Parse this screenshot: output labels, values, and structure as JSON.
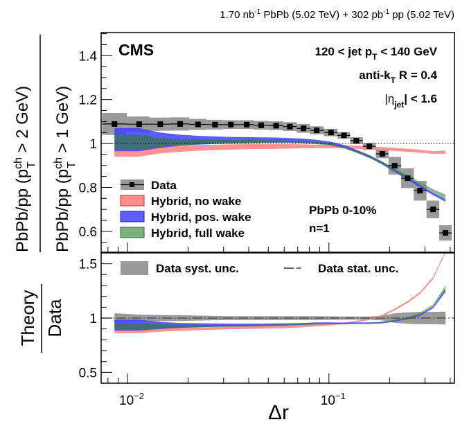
{
  "chart_data": [
    {
      "type": "line",
      "panel": "top",
      "header": {
        "lumi_pbpb": "1.70 nb",
        "lumi_pbpb_sup": "-1",
        "lumi_pbpb_rest": " PbPb (5.02 TeV) + 302 pb",
        "lumi_pp_sup": "-1",
        "lumi_pp_rest": " pp (5.02 TeV)"
      },
      "experiment_label": "CMS",
      "annotations": {
        "jet_pt_a": "120 < jet p",
        "jet_pt_sub": "T",
        "jet_pt_b": " < 140 GeV",
        "algo_a": "anti-k",
        "algo_sub": "T",
        "algo_b": " R = 0.4",
        "eta_a": "|η",
        "eta_sub": "jet",
        "eta_b": "| < 1.6",
        "centrality": "PbPb 0-10%",
        "n": "n=1"
      },
      "ylabel": {
        "num_a": "PbPb/pp (p",
        "num_sup": "ch",
        "num_sub": "T",
        "num_b": " > 2 GeV)",
        "den_a": "PbPb/pp (p",
        "den_sup": "ch",
        "den_sub": "T",
        "den_b": " > 1 GeV)"
      },
      "xscale": "log",
      "xlim": [
        0.0074,
        0.42
      ],
      "ylim": [
        0.505,
        1.505
      ],
      "yticks": [
        0.6,
        0.8,
        1.0,
        1.2,
        1.4
      ],
      "ytick_labels": [
        "0.6",
        "0.8",
        "1",
        "1.2",
        "1.4"
      ],
      "reference_line": 1.0,
      "legend": {
        "placement": "bottom-left",
        "entries": [
          {
            "label": "Data",
            "kind": "data"
          },
          {
            "label": "Hybrid, no wake",
            "color": "#ff7f7f"
          },
          {
            "label": "Hybrid, pos. wake",
            "color": "#3b3bff"
          },
          {
            "label": "Hybrid, full wake",
            "color": "#4f9a4f"
          }
        ]
      },
      "x": [
        0.00862,
        0.01143,
        0.01455,
        0.01826,
        0.0224,
        0.0272,
        0.0326,
        0.0391,
        0.0461,
        0.0547,
        0.064,
        0.0748,
        0.0869,
        0.1024,
        0.1188,
        0.1368,
        0.1588,
        0.184,
        0.212,
        0.246,
        0.283,
        0.329,
        0.379
      ],
      "series": [
        {
          "name": "Data",
          "values": [
            1.089,
            1.088,
            1.088,
            1.089,
            1.087,
            1.086,
            1.086,
            1.086,
            1.083,
            1.081,
            1.077,
            1.069,
            1.06,
            1.05,
            1.037,
            1.013,
            0.987,
            0.953,
            0.899,
            0.842,
            0.785,
            0.7,
            0.593
          ],
          "syst": [
            0.05,
            0.035,
            0.03,
            0.03,
            0.025,
            0.022,
            0.02,
            0.02,
            0.02,
            0.02,
            0.02,
            0.02,
            0.018,
            0.017,
            0.015,
            0.015,
            0.015,
            0.02,
            0.04,
            0.045,
            0.045,
            0.04,
            0.035
          ]
        },
        {
          "name": "Hybrid, no wake",
          "color": "#ff8080",
          "lo": [
            0.94,
            0.94,
            0.955,
            0.962,
            0.967,
            0.97,
            0.972,
            0.974,
            0.975,
            0.976,
            0.977,
            0.978,
            0.979,
            0.979,
            0.978,
            0.976,
            0.973,
            0.97,
            0.966,
            0.962,
            0.958,
            0.953,
            0.952
          ],
          "hi": [
            0.975,
            0.975,
            0.985,
            0.99,
            0.993,
            0.995,
            0.996,
            0.997,
            0.997,
            0.997,
            0.997,
            0.996,
            0.995,
            0.994,
            0.993,
            0.99,
            0.987,
            0.984,
            0.98,
            0.976,
            0.972,
            0.965,
            0.968
          ]
        },
        {
          "name": "Hybrid, pos. wake",
          "color": "#4040ff",
          "lo": [
            0.965,
            0.965,
            0.98,
            0.99,
            0.995,
            0.998,
            1.0,
            1.002,
            1.003,
            1.004,
            1.004,
            1.003,
            1.0,
            0.993,
            0.98,
            0.96,
            0.935,
            0.905,
            0.87,
            0.835,
            0.8,
            0.765,
            0.735
          ],
          "hi": [
            1.07,
            1.07,
            1.05,
            1.04,
            1.035,
            1.032,
            1.03,
            1.029,
            1.028,
            1.027,
            1.025,
            1.022,
            1.017,
            1.008,
            0.993,
            0.972,
            0.947,
            0.917,
            0.883,
            0.848,
            0.812,
            0.775,
            0.745
          ]
        },
        {
          "name": "Hybrid, full wake",
          "color": "#5ba05b",
          "lo": [
            0.97,
            0.97,
            0.985,
            0.992,
            0.996,
            0.999,
            1.001,
            1.002,
            1.003,
            1.003,
            1.003,
            1.001,
            0.997,
            0.99,
            0.977,
            0.958,
            0.935,
            0.907,
            0.875,
            0.843,
            0.81,
            0.778,
            0.752
          ],
          "hi": [
            1.04,
            1.04,
            1.025,
            1.02,
            1.018,
            1.017,
            1.016,
            1.015,
            1.015,
            1.014,
            1.013,
            1.011,
            1.007,
            1.0,
            0.987,
            0.968,
            0.945,
            0.918,
            0.888,
            0.857,
            0.825,
            0.792,
            0.768
          ]
        }
      ]
    },
    {
      "type": "line",
      "panel": "bottom",
      "ylabel": {
        "num": "Theory",
        "den": "Data"
      },
      "xlabel": "Δr",
      "xscale": "log",
      "xlim": [
        0.0074,
        0.42
      ],
      "xtick_labels": [
        {
          "base": "10",
          "exp": "−2",
          "value": 0.01
        },
        {
          "base": "10",
          "exp": "−1",
          "value": 0.1
        }
      ],
      "ylim": [
        0.4,
        1.6
      ],
      "yticks": [
        0.5,
        1.0,
        1.5
      ],
      "ytick_labels": [
        "0.5",
        "1",
        "1.5"
      ],
      "reference_line": 1.0,
      "legend": {
        "placement": "top",
        "entries": [
          {
            "label": "Data syst. unc.",
            "kind": "band"
          },
          {
            "label": "Data stat. unc.",
            "kind": "dashed"
          }
        ]
      },
      "x": [
        0.00862,
        0.01143,
        0.01455,
        0.01826,
        0.0224,
        0.0272,
        0.0326,
        0.0391,
        0.0461,
        0.0547,
        0.064,
        0.0748,
        0.0869,
        0.1024,
        0.1188,
        0.1368,
        0.1588,
        0.184,
        0.212,
        0.246,
        0.283,
        0.329,
        0.379
      ],
      "series": [
        {
          "name": "Data syst. unc.",
          "rel": [
            0.045,
            0.032,
            0.028,
            0.027,
            0.023,
            0.02,
            0.018,
            0.018,
            0.018,
            0.018,
            0.018,
            0.018,
            0.017,
            0.016,
            0.015,
            0.015,
            0.015,
            0.022,
            0.044,
            0.053,
            0.057,
            0.057,
            0.059
          ]
        },
        {
          "name": "Hybrid, no wake",
          "color": "#ff8080",
          "lo": [
            0.86,
            0.86,
            0.875,
            0.882,
            0.888,
            0.893,
            0.897,
            0.9,
            0.902,
            0.905,
            0.908,
            0.915,
            0.924,
            0.933,
            0.945,
            0.962,
            0.982,
            1.015,
            1.07,
            1.14,
            1.22,
            1.36,
            1.6
          ],
          "hi": [
            0.897,
            0.897,
            0.906,
            0.91,
            0.914,
            0.917,
            0.92,
            0.923,
            0.925,
            0.928,
            0.931,
            0.937,
            0.944,
            0.951,
            0.96,
            0.975,
            0.995,
            1.03,
            1.087,
            1.157,
            1.24,
            1.38,
            1.62
          ]
        },
        {
          "name": "Hybrid, pos. wake",
          "color": "#4040ff",
          "lo": [
            0.885,
            0.885,
            0.9,
            0.91,
            0.916,
            0.919,
            0.921,
            0.923,
            0.926,
            0.929,
            0.933,
            0.938,
            0.943,
            0.946,
            0.945,
            0.948,
            0.948,
            0.95,
            0.966,
            0.99,
            1.02,
            1.09,
            1.24
          ],
          "hi": [
            0.985,
            0.985,
            0.965,
            0.955,
            0.952,
            0.95,
            0.949,
            0.949,
            0.949,
            0.95,
            0.952,
            0.955,
            0.96,
            0.96,
            0.958,
            0.96,
            0.96,
            0.963,
            0.98,
            1.005,
            1.035,
            1.105,
            1.27
          ]
        },
        {
          "name": "Hybrid, full wake",
          "color": "#5ba05b",
          "lo": [
            0.89,
            0.89,
            0.905,
            0.91,
            0.916,
            0.92,
            0.922,
            0.923,
            0.926,
            0.928,
            0.931,
            0.936,
            0.94,
            0.943,
            0.942,
            0.946,
            0.946,
            0.955,
            0.973,
            1.0,
            1.03,
            1.11,
            1.26
          ],
          "hi": [
            0.955,
            0.955,
            0.942,
            0.937,
            0.937,
            0.937,
            0.937,
            0.937,
            0.938,
            0.94,
            0.942,
            0.946,
            0.95,
            0.952,
            0.951,
            0.955,
            0.957,
            0.968,
            0.99,
            1.015,
            1.05,
            1.125,
            1.3
          ]
        }
      ]
    }
  ]
}
